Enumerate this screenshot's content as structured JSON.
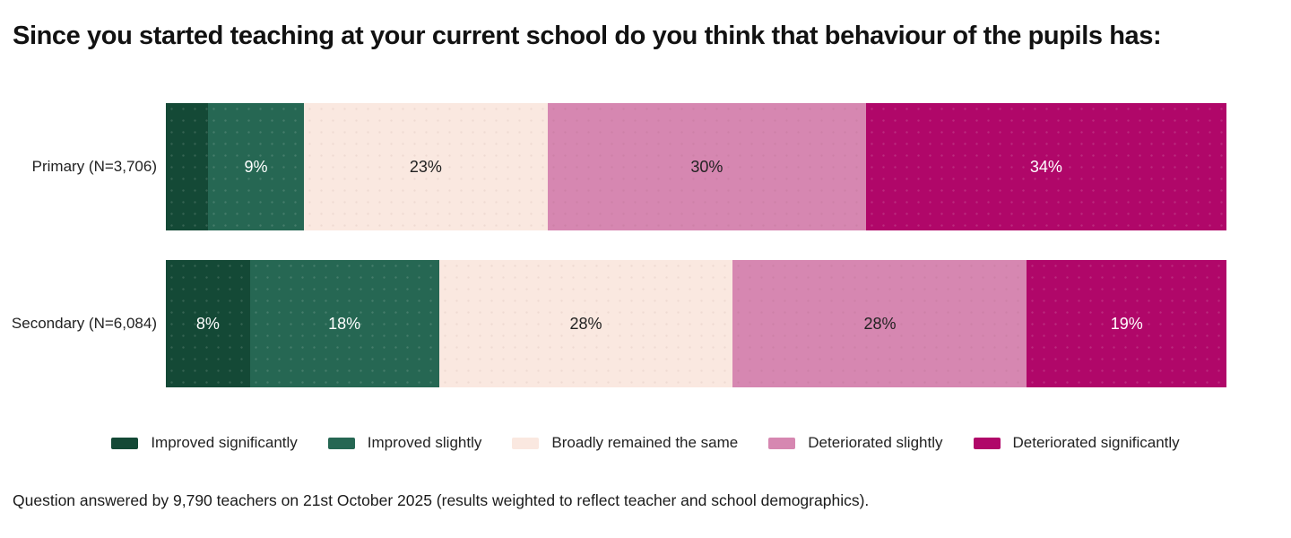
{
  "title": "Since you started teaching at your current school do you think that behaviour of the pupils has:",
  "footnote": "Question answered by 9,790 teachers on 21st October 2025 (results weighted to reflect teacher and school demographics).",
  "chart_data": {
    "type": "bar",
    "variant": "horizontal-stacked",
    "stacked": true,
    "orientation": "horizontal",
    "unit": "%",
    "grid": false,
    "axes_visible": false,
    "legend_position": "bottom-center",
    "categories": [
      "Primary (N=3,706)",
      "Secondary (N=6,084)"
    ],
    "series": [
      {
        "name": "Improved significantly",
        "color": "#144936",
        "label_style": "light",
        "values": [
          4,
          8
        ],
        "value_labels": [
          "",
          "8%"
        ]
      },
      {
        "name": "Improved slightly",
        "color": "#266753",
        "label_style": "light",
        "values": [
          9,
          18
        ],
        "value_labels": [
          "9%",
          "18%"
        ]
      },
      {
        "name": "Broadly remained the same",
        "color": "#fae8e0",
        "label_style": "dark",
        "values": [
          23,
          28
        ],
        "value_labels": [
          "23%",
          "28%"
        ]
      },
      {
        "name": "Deteriorated slightly",
        "color": "#d687b1",
        "label_style": "dark",
        "values": [
          30,
          28
        ],
        "value_labels": [
          "30%",
          "28%"
        ]
      },
      {
        "name": "Deteriorated significantly",
        "color": "#b00769",
        "label_style": "light",
        "values": [
          34,
          19
        ],
        "value_labels": [
          "34%",
          "19%"
        ]
      }
    ]
  }
}
